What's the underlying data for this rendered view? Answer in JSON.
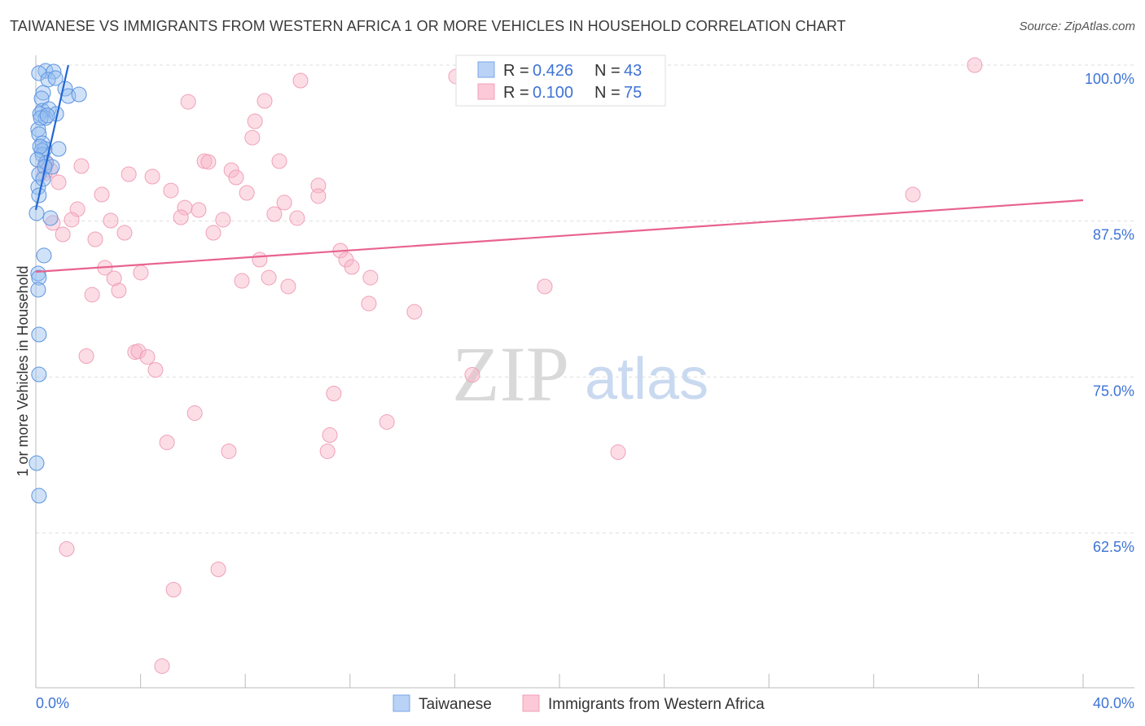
{
  "title": "TAIWANESE VS IMMIGRANTS FROM WESTERN AFRICA 1 OR MORE VEHICLES IN HOUSEHOLD CORRELATION CHART",
  "source": "Source: ZipAtlas.com",
  "watermark": {
    "zip": "ZIP",
    "atlas": "atlas"
  },
  "legend_stats": [
    {
      "r_label": "R =",
      "r_value": "0.426",
      "n_label": "N =",
      "n_value": "43"
    },
    {
      "r_label": "R =",
      "r_value": "0.100",
      "n_label": "N =",
      "n_value": "75"
    }
  ],
  "chart_data": {
    "type": "scatter",
    "title": "TAIWANESE VS IMMIGRANTS FROM WESTERN AFRICA 1 OR MORE VEHICLES IN HOUSEHOLD CORRELATION CHART",
    "xlabel": "",
    "ylabel": "1 or more Vehicles in Household",
    "xlim": [
      0,
      40
    ],
    "ylim": [
      50,
      100
    ],
    "x_tick_labels": [
      "0.0%",
      "40.0%"
    ],
    "y_ticks": [
      100,
      87.5,
      75,
      62.5
    ],
    "y_tick_labels": [
      "100.0%",
      "87.5%",
      "75.0%",
      "62.5%"
    ],
    "grid": true,
    "legend_position": "top-center",
    "series": [
      {
        "name": "Taiwanese",
        "color": "#5b93e0",
        "line_color": "#2266d4",
        "trend": {
          "x": [
            0,
            1.24
          ],
          "y": [
            88.4,
            100
          ]
        },
        "points": [
          [
            0.37,
            99.54
          ],
          [
            0.12,
            99.35
          ],
          [
            0.68,
            99.48
          ],
          [
            0.47,
            98.83
          ],
          [
            0.75,
            98.96
          ],
          [
            1.12,
            98.11
          ],
          [
            1.24,
            97.52
          ],
          [
            1.65,
            97.65
          ],
          [
            0.28,
            97.78
          ],
          [
            0.22,
            97.33
          ],
          [
            0.25,
            96.35
          ],
          [
            0.5,
            96.48
          ],
          [
            0.16,
            96.09
          ],
          [
            0.37,
            95.76
          ],
          [
            0.78,
            96.09
          ],
          [
            0.09,
            94.85
          ],
          [
            0.12,
            94.46
          ],
          [
            0.25,
            93.74
          ],
          [
            0.34,
            93.28
          ],
          [
            0.22,
            93.15
          ],
          [
            0.87,
            93.28
          ],
          [
            0.25,
            92.82
          ],
          [
            0.4,
            92.17
          ],
          [
            0.62,
            91.85
          ],
          [
            0.12,
            91.26
          ],
          [
            0.09,
            90.22
          ],
          [
            0.12,
            89.56
          ],
          [
            0.03,
            88.13
          ],
          [
            0.56,
            87.74
          ],
          [
            0.31,
            84.74
          ],
          [
            0.09,
            83.3
          ],
          [
            0.12,
            82.97
          ],
          [
            0.09,
            82.0
          ],
          [
            0.12,
            78.41
          ],
          [
            0.12,
            75.21
          ],
          [
            0.03,
            68.1
          ],
          [
            0.12,
            65.49
          ],
          [
            0.16,
            93.48
          ],
          [
            0.06,
            92.43
          ],
          [
            0.34,
            91.85
          ],
          [
            0.19,
            95.76
          ],
          [
            0.44,
            95.96
          ],
          [
            0.28,
            90.87
          ]
        ]
      },
      {
        "name": "Immigrants from Western Africa",
        "color": "#f4a3bb",
        "line_color": "#e8638f",
        "trend": {
          "x": [
            0,
            40
          ],
          "y": [
            83.43,
            89.17
          ]
        },
        "points": [
          [
            18.66,
            100.0
          ],
          [
            35.86,
            100.0
          ],
          [
            16.05,
            99.09
          ],
          [
            10.11,
            98.76
          ],
          [
            5.82,
            97.06
          ],
          [
            8.74,
            97.13
          ],
          [
            8.37,
            95.5
          ],
          [
            8.27,
            94.19
          ],
          [
            9.3,
            92.3
          ],
          [
            6.44,
            92.3
          ],
          [
            6.59,
            92.24
          ],
          [
            7.47,
            91.58
          ],
          [
            7.65,
            91.0
          ],
          [
            1.74,
            91.91
          ],
          [
            3.55,
            91.26
          ],
          [
            4.45,
            91.06
          ],
          [
            5.16,
            89.95
          ],
          [
            8.06,
            89.76
          ],
          [
            2.52,
            89.63
          ],
          [
            9.49,
            88.98
          ],
          [
            10.79,
            90.35
          ],
          [
            10.79,
            89.5
          ],
          [
            33.5,
            89.63
          ],
          [
            1.59,
            88.45
          ],
          [
            5.69,
            88.58
          ],
          [
            6.22,
            88.39
          ],
          [
            5.54,
            87.8
          ],
          [
            2.86,
            87.54
          ],
          [
            1.37,
            87.61
          ],
          [
            9.11,
            88.06
          ],
          [
            9.98,
            87.74
          ],
          [
            7.15,
            87.61
          ],
          [
            0.65,
            87.35
          ],
          [
            1.03,
            86.43
          ],
          [
            3.39,
            86.56
          ],
          [
            2.27,
            86.04
          ],
          [
            6.78,
            86.56
          ],
          [
            11.63,
            85.13
          ],
          [
            11.85,
            84.41
          ],
          [
            8.55,
            84.41
          ],
          [
            12.07,
            83.82
          ],
          [
            2.64,
            83.76
          ],
          [
            4.01,
            83.37
          ],
          [
            2.99,
            82.91
          ],
          [
            8.9,
            82.97
          ],
          [
            12.78,
            82.97
          ],
          [
            7.87,
            82.71
          ],
          [
            9.64,
            82.26
          ],
          [
            3.17,
            81.93
          ],
          [
            2.15,
            81.6
          ],
          [
            19.44,
            82.26
          ],
          [
            12.72,
            80.89
          ],
          [
            14.46,
            80.23
          ],
          [
            3.79,
            77.0
          ],
          [
            3.92,
            77.06
          ],
          [
            4.26,
            76.61
          ],
          [
            1.93,
            76.68
          ],
          [
            4.57,
            75.57
          ],
          [
            16.67,
            75.18
          ],
          [
            11.38,
            73.68
          ],
          [
            6.07,
            72.11
          ],
          [
            13.41,
            71.4
          ],
          [
            11.23,
            70.35
          ],
          [
            5.01,
            69.76
          ],
          [
            7.37,
            69.05
          ],
          [
            11.14,
            69.05
          ],
          [
            22.24,
            68.98
          ],
          [
            1.18,
            61.22
          ],
          [
            6.97,
            59.59
          ],
          [
            5.26,
            57.96
          ],
          [
            4.82,
            51.83
          ],
          [
            0.34,
            91.32
          ],
          [
            0.56,
            91.58
          ],
          [
            0.87,
            90.61
          ],
          [
            0.37,
            92.17
          ]
        ]
      }
    ]
  }
}
